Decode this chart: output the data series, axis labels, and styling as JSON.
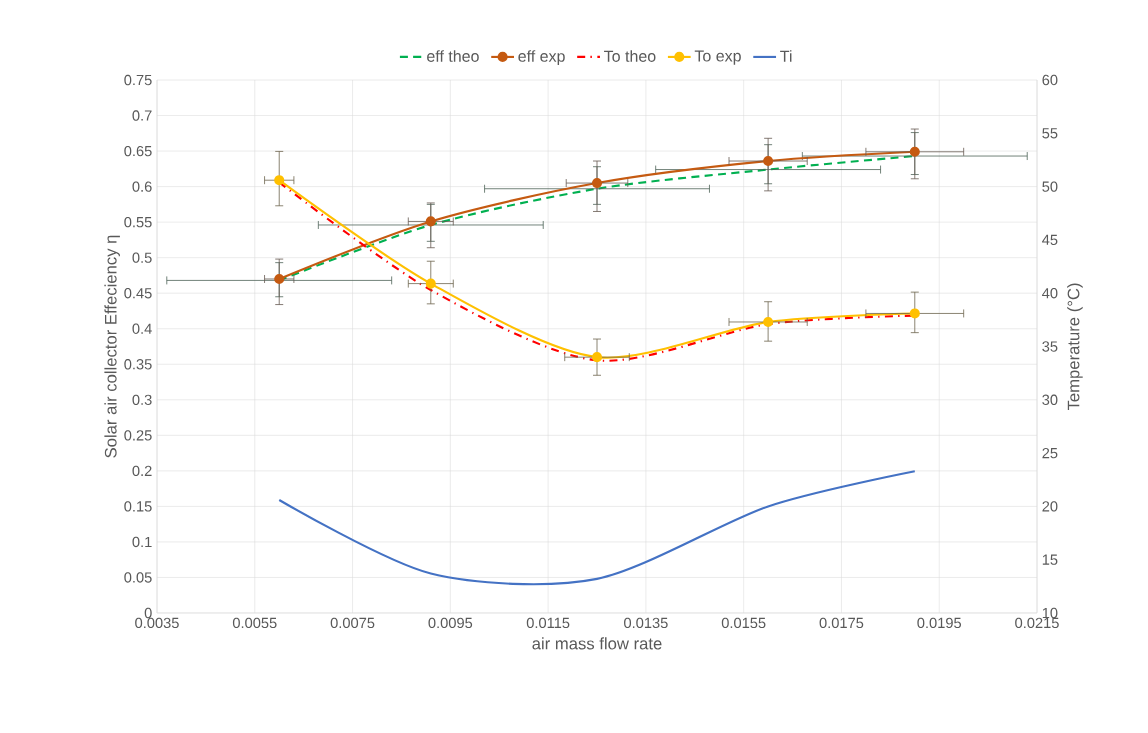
{
  "chart_data": {
    "type": "line",
    "xlabel": "air mass flow rate",
    "ylabel": "Solar air collector Effeciency η",
    "y2label": "Temperature (°C)",
    "x": [
      0.006,
      0.0091,
      0.0125,
      0.016,
      0.019
    ],
    "xlim": [
      0.0035,
      0.0215
    ],
    "xticks": [
      0.0035,
      0.0055,
      0.0075,
      0.0095,
      0.0115,
      0.0135,
      0.0155,
      0.0175,
      0.0195,
      0.0215
    ],
    "ylim": [
      0,
      0.75
    ],
    "yticks": [
      0,
      0.05,
      0.1,
      0.15,
      0.2,
      0.25,
      0.3,
      0.35,
      0.4,
      0.45,
      0.5,
      0.55,
      0.6,
      0.65,
      0.7,
      0.75
    ],
    "y2lim": [
      10,
      60
    ],
    "y2ticks": [
      10,
      15,
      20,
      25,
      30,
      35,
      40,
      45,
      50,
      55,
      60
    ],
    "grid": true,
    "legend": "top",
    "series": [
      {
        "name": "eff theo",
        "color": "#00b050",
        "line_style": "dashed",
        "marker": "none",
        "values": [
          0.468,
          0.546,
          0.597,
          0.624,
          0.643
        ],
        "errors": [
          [
            0.445,
            0.493
          ],
          [
            0.523,
            0.575
          ],
          [
            0.575,
            0.628
          ],
          [
            0.604,
            0.659
          ],
          [
            0.617,
            0.676
          ]
        ],
        "xerrors": [
          0.0023,
          0.0023,
          0.0023,
          0.0023,
          0.0023
        ]
      },
      {
        "name": "eff exp",
        "color": "#c55a11",
        "line_style": "solid",
        "marker": "circle",
        "values": [
          0.47,
          0.551,
          0.605,
          0.636,
          0.649
        ],
        "errors": [
          [
            0.434,
            0.498
          ],
          [
            0.514,
            0.577
          ],
          [
            0.565,
            0.636
          ],
          [
            0.594,
            0.668
          ],
          [
            0.611,
            0.681
          ]
        ],
        "xerrors": [
          0.0003,
          0.00046,
          0.00063,
          0.0008,
          0.001
        ]
      },
      {
        "name": "To theo",
        "color": "#ff0000",
        "line_style": "dashdot",
        "marker": "none",
        "axis": "y2",
        "values": [
          50.4,
          40.3,
          33.7,
          37.1,
          37.9
        ]
      },
      {
        "name": "To exp",
        "color": "#ffc000",
        "line_style": "solid",
        "marker": "circle",
        "axis": "y2",
        "values": [
          50.6,
          40.9,
          34.0,
          37.3,
          38.1
        ],
        "errors": [
          [
            48.2,
            53.3
          ],
          [
            39.0,
            43.0
          ],
          [
            32.3,
            35.7
          ],
          [
            35.5,
            39.2
          ],
          [
            36.3,
            40.1
          ]
        ],
        "xerrors": [
          0.0003,
          0.00046,
          0.00066,
          0.0008,
          0.001
        ]
      },
      {
        "name": "Ti",
        "color": "#4472c4",
        "line_style": "solid",
        "marker": "none",
        "axis": "y2",
        "values": [
          20.6,
          13.7,
          13.2,
          20.0,
          23.3
        ]
      }
    ]
  }
}
